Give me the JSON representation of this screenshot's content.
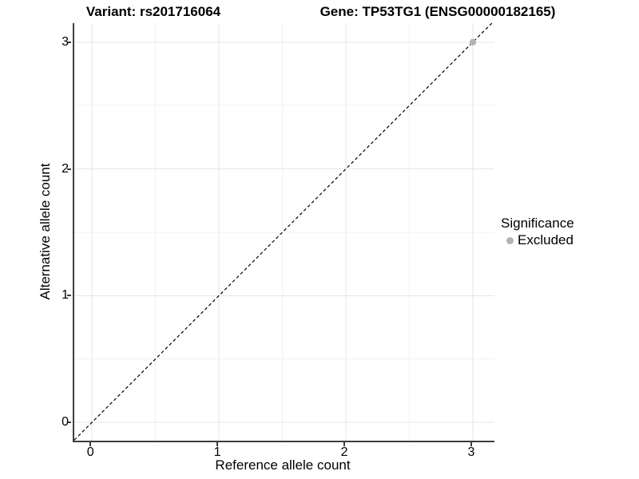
{
  "figure": {
    "title_variant": "Variant: rs201716064",
    "title_gene": "Gene: TP53TG1 (ENSG00000182165)"
  },
  "chart_data": {
    "type": "scatter",
    "title": "Variant: rs201716064",
    "subtitle": "Gene: TP53TG1 (ENSG00000182165)",
    "xlabel": "Reference allele count",
    "ylabel": "Alternative allele count",
    "xlim": [
      -0.14,
      3.17
    ],
    "ylim": [
      -0.145,
      3.15
    ],
    "x_ticks": [
      0,
      1,
      2,
      3
    ],
    "y_ticks": [
      0,
      1,
      2,
      3
    ],
    "x_minor_ticks": [
      0.5,
      1.5,
      2.5
    ],
    "y_minor_ticks": [
      0.5,
      1.5,
      2.5
    ],
    "grid": true,
    "legend_position": "right",
    "reference_line": {
      "name": "identity",
      "slope": 1,
      "intercept": 0,
      "style": "dashed",
      "color": "#000000"
    },
    "series": [
      {
        "name": "Excluded",
        "color": "#b3b3b3",
        "points": [
          {
            "x": 3,
            "y": 3
          }
        ]
      }
    ],
    "legend": {
      "title": "Significance",
      "items": [
        {
          "label": "Excluded",
          "color": "#b3b3b3",
          "marker": "circle"
        }
      ]
    },
    "colors": {
      "axis_line": "#3d3d3d",
      "grid_major": "#e6e6e6",
      "grid_minor": "#f2f2f2",
      "point": "#b3b3b3"
    }
  }
}
